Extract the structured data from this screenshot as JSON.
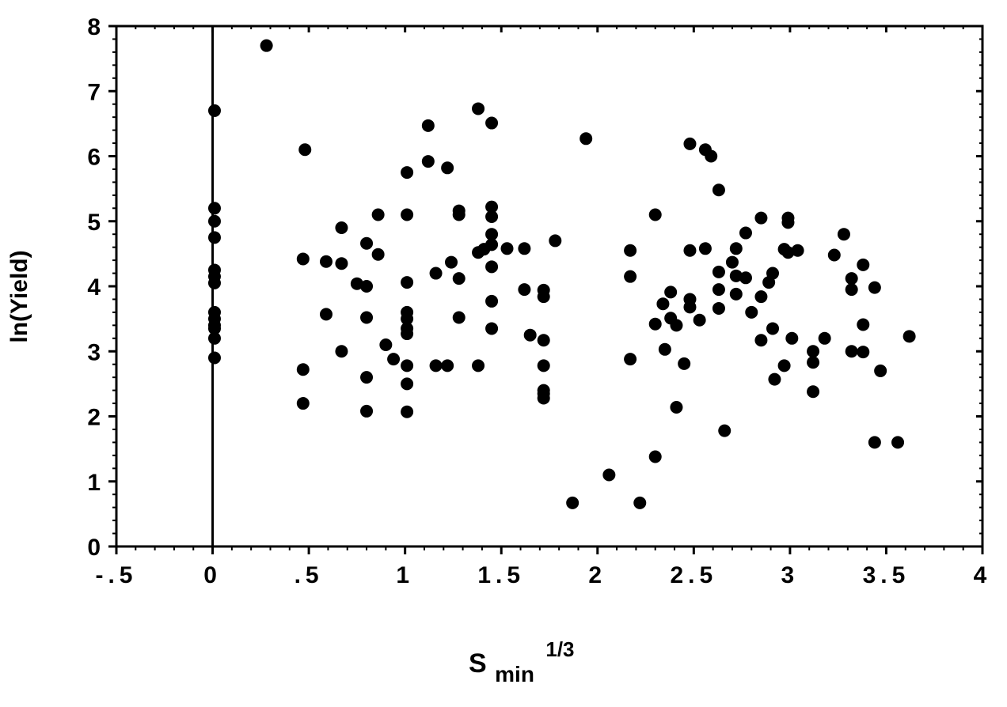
{
  "chart_data": {
    "type": "scatter",
    "xlabel": {
      "base": "S",
      "subscript": "min",
      "superscript": "1/3"
    },
    "ylabel": "ln(Yield)",
    "xlim": [
      -0.5,
      4
    ],
    "ylim": [
      0,
      8
    ],
    "x_ticks": [
      -0.5,
      0,
      0.5,
      1,
      1.5,
      2,
      2.5,
      3,
      3.5,
      4
    ],
    "x_tick_labels": [
      "-.5",
      "0",
      ".5",
      "1",
      "1.5",
      "2",
      "2.5",
      "3",
      "3.5",
      "4"
    ],
    "y_ticks": [
      0,
      1,
      2,
      3,
      4,
      5,
      6,
      7,
      8
    ],
    "y_tick_labels": [
      "0",
      "1",
      "2",
      "3",
      "4",
      "5",
      "6",
      "7",
      "8"
    ],
    "reference_line_x": 0,
    "grid": false,
    "marker_color": "#000000",
    "points": [
      [
        0.28,
        7.7
      ],
      [
        0.01,
        6.7
      ],
      [
        0.01,
        5.2
      ],
      [
        0.01,
        5.0
      ],
      [
        0.01,
        4.75
      ],
      [
        0.01,
        4.25
      ],
      [
        0.01,
        4.15
      ],
      [
        0.01,
        4.05
      ],
      [
        0.01,
        3.6
      ],
      [
        0.01,
        3.5
      ],
      [
        0.01,
        3.4
      ],
      [
        0.01,
        3.35
      ],
      [
        0.01,
        3.2
      ],
      [
        0.01,
        2.9
      ],
      [
        0.48,
        6.1
      ],
      [
        0.47,
        4.42
      ],
      [
        0.47,
        2.72
      ],
      [
        0.47,
        2.2
      ],
      [
        0.59,
        4.38
      ],
      [
        0.59,
        3.57
      ],
      [
        0.67,
        4.9
      ],
      [
        0.67,
        4.35
      ],
      [
        0.67,
        3.0
      ],
      [
        0.75,
        4.04
      ],
      [
        0.8,
        4.66
      ],
      [
        0.8,
        4.0
      ],
      [
        0.8,
        3.52
      ],
      [
        0.8,
        2.6
      ],
      [
        0.8,
        2.08
      ],
      [
        0.86,
        5.1
      ],
      [
        0.86,
        4.49
      ],
      [
        0.9,
        3.1
      ],
      [
        0.94,
        2.88
      ],
      [
        1.01,
        5.75
      ],
      [
        1.01,
        5.1
      ],
      [
        1.01,
        4.06
      ],
      [
        1.01,
        3.6
      ],
      [
        1.01,
        3.5
      ],
      [
        1.01,
        3.35
      ],
      [
        1.01,
        3.27
      ],
      [
        1.01,
        2.78
      ],
      [
        1.01,
        2.5
      ],
      [
        1.01,
        2.07
      ],
      [
        1.12,
        6.47
      ],
      [
        1.12,
        5.92
      ],
      [
        1.16,
        4.2
      ],
      [
        1.16,
        2.78
      ],
      [
        1.22,
        5.82
      ],
      [
        1.24,
        4.37
      ],
      [
        1.22,
        2.78
      ],
      [
        1.28,
        5.16
      ],
      [
        1.28,
        5.1
      ],
      [
        1.28,
        4.12
      ],
      [
        1.28,
        3.52
      ],
      [
        1.38,
        6.73
      ],
      [
        1.38,
        4.52
      ],
      [
        1.38,
        2.78
      ],
      [
        1.41,
        4.57
      ],
      [
        1.45,
        6.51
      ],
      [
        1.45,
        5.22
      ],
      [
        1.45,
        5.07
      ],
      [
        1.45,
        4.8
      ],
      [
        1.45,
        4.64
      ],
      [
        1.45,
        4.3
      ],
      [
        1.45,
        3.77
      ],
      [
        1.45,
        3.35
      ],
      [
        1.53,
        4.58
      ],
      [
        1.62,
        4.58
      ],
      [
        1.62,
        3.95
      ],
      [
        1.65,
        3.25
      ],
      [
        1.72,
        3.94
      ],
      [
        1.72,
        3.84
      ],
      [
        1.72,
        3.17
      ],
      [
        1.72,
        2.78
      ],
      [
        1.72,
        2.4
      ],
      [
        1.72,
        2.35
      ],
      [
        1.72,
        2.28
      ],
      [
        1.78,
        4.7
      ],
      [
        1.87,
        0.67
      ],
      [
        1.94,
        6.27
      ],
      [
        2.06,
        1.1
      ],
      [
        2.17,
        4.55
      ],
      [
        2.17,
        4.15
      ],
      [
        2.17,
        2.88
      ],
      [
        2.22,
        0.67
      ],
      [
        2.3,
        5.1
      ],
      [
        2.3,
        3.42
      ],
      [
        2.3,
        1.38
      ],
      [
        2.34,
        3.73
      ],
      [
        2.35,
        3.03
      ],
      [
        2.38,
        3.91
      ],
      [
        2.38,
        3.51
      ],
      [
        2.41,
        3.4
      ],
      [
        2.41,
        2.14
      ],
      [
        2.45,
        2.81
      ],
      [
        2.48,
        6.19
      ],
      [
        2.48,
        4.55
      ],
      [
        2.48,
        3.8
      ],
      [
        2.48,
        3.68
      ],
      [
        2.53,
        3.48
      ],
      [
        2.56,
        6.1
      ],
      [
        2.56,
        4.58
      ],
      [
        2.59,
        6.0
      ],
      [
        2.63,
        5.48
      ],
      [
        2.63,
        4.22
      ],
      [
        2.63,
        3.95
      ],
      [
        2.63,
        3.66
      ],
      [
        2.66,
        1.78
      ],
      [
        2.7,
        4.37
      ],
      [
        2.72,
        4.58
      ],
      [
        2.72,
        4.16
      ],
      [
        2.72,
        3.88
      ],
      [
        2.77,
        4.82
      ],
      [
        2.77,
        4.13
      ],
      [
        2.8,
        3.6
      ],
      [
        2.85,
        5.05
      ],
      [
        2.85,
        3.84
      ],
      [
        2.85,
        3.17
      ],
      [
        2.89,
        4.06
      ],
      [
        2.91,
        4.2
      ],
      [
        2.91,
        3.35
      ],
      [
        2.92,
        2.57
      ],
      [
        2.97,
        4.57
      ],
      [
        2.97,
        2.78
      ],
      [
        2.99,
        5.05
      ],
      [
        2.99,
        4.98
      ],
      [
        2.99,
        4.52
      ],
      [
        3.01,
        3.2
      ],
      [
        3.04,
        4.55
      ],
      [
        3.12,
        3.0
      ],
      [
        3.12,
        2.83
      ],
      [
        3.12,
        2.38
      ],
      [
        3.18,
        3.2
      ],
      [
        3.23,
        4.48
      ],
      [
        3.28,
        4.8
      ],
      [
        3.32,
        4.12
      ],
      [
        3.32,
        3.95
      ],
      [
        3.32,
        3.0
      ],
      [
        3.38,
        4.33
      ],
      [
        3.38,
        3.41
      ],
      [
        3.38,
        2.99
      ],
      [
        3.44,
        3.98
      ],
      [
        3.44,
        1.6
      ],
      [
        3.47,
        2.7
      ],
      [
        3.56,
        1.6
      ],
      [
        3.62,
        3.23
      ]
    ]
  }
}
